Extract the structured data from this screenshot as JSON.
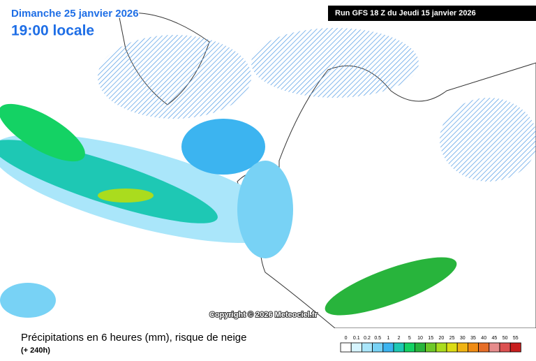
{
  "header": {
    "date": "Dimanche 25 janvier 2026",
    "time": "19:00 locale",
    "run": "Run GFS 18 Z du Jeudi 15 janvier 2026"
  },
  "copyright": "Copyright © 2026 Meteociel.fr",
  "legend": {
    "title": "Précipitations en 6 heures (mm), risque de neige",
    "subtitle": "(+ 240h)",
    "levels": [
      {
        "label": "0",
        "color": "#ffffff"
      },
      {
        "label": "0.1",
        "color": "#d7f5ff"
      },
      {
        "label": "0.2",
        "color": "#aae6fa"
      },
      {
        "label": "0.5",
        "color": "#78d2f5"
      },
      {
        "label": "1",
        "color": "#3cb4f0"
      },
      {
        "label": "2",
        "color": "#1ec8b4"
      },
      {
        "label": "5",
        "color": "#14d264"
      },
      {
        "label": "10",
        "color": "#28b43c"
      },
      {
        "label": "15",
        "color": "#6ec828"
      },
      {
        "label": "20",
        "color": "#aadc1e"
      },
      {
        "label": "25",
        "color": "#dcdc14"
      },
      {
        "label": "30",
        "color": "#f0b414"
      },
      {
        "label": "35",
        "color": "#f08c14"
      },
      {
        "label": "40",
        "color": "#e66e28"
      },
      {
        "label": "45",
        "color": "#e68c8c"
      },
      {
        "label": "50",
        "color": "#dc5050"
      },
      {
        "label": "55",
        "color": "#c81e1e"
      }
    ]
  }
}
